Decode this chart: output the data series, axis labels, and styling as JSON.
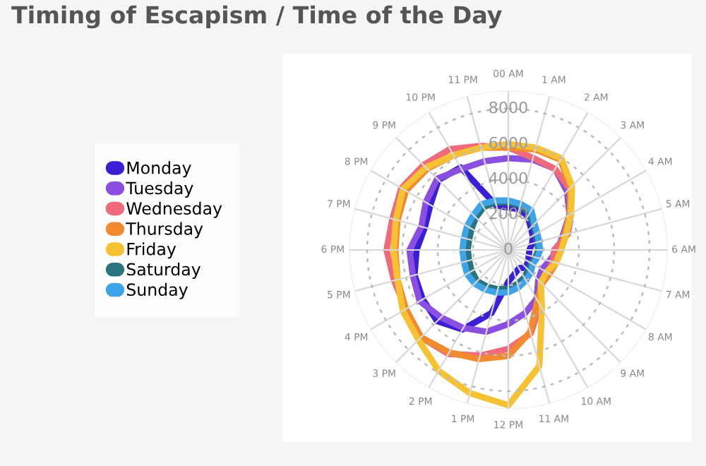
{
  "chart_data": {
    "type": "radar",
    "title": "Timing of Escapism / Time of the Day",
    "categories": [
      "00 AM",
      "1 AM",
      "2 AM",
      "3 AM",
      "4 AM",
      "5 AM",
      "6 AM",
      "7 AM",
      "8 AM",
      "9 AM",
      "10 AM",
      "11 AM",
      "12 PM",
      "1 PM",
      "2 PM",
      "3 PM",
      "4 PM",
      "5 PM",
      "6 PM",
      "7 PM",
      "8 PM",
      "9 PM",
      "10 PM",
      "11 PM"
    ],
    "series": [
      {
        "name": "Monday",
        "color": "#3b1fd6",
        "values": [
          2400,
          2400,
          2200,
          1800,
          1600,
          1400,
          1200,
          1200,
          1300,
          1400,
          1200,
          1400,
          1800,
          3700,
          5200,
          5700,
          5600,
          5500,
          5200,
          4900,
          5100,
          5600,
          5400,
          2600
        ]
      },
      {
        "name": "Tuesday",
        "color": "#8a4fe0",
        "values": [
          5200,
          5300,
          5300,
          4700,
          4000,
          3200,
          2800,
          2400,
          2200,
          2400,
          3200,
          3700,
          4200,
          4800,
          5100,
          5400,
          5800,
          5600,
          5600,
          5100,
          5400,
          5700,
          5300,
          5200
        ]
      },
      {
        "name": "Wednesday",
        "color": "#ef6b7b",
        "values": [
          5800,
          5400,
          5300,
          4900,
          4100,
          3500,
          2600,
          2600,
          2600,
          2600,
          3600,
          4900,
          5600,
          6200,
          6800,
          7000,
          6700,
          6700,
          6900,
          6800,
          7000,
          6800,
          6600,
          6100
        ]
      },
      {
        "name": "Thursday",
        "color": "#f28a30",
        "values": [
          5800,
          5900,
          5900,
          5000,
          4000,
          3300,
          3000,
          2800,
          2700,
          2700,
          3300,
          4800,
          6000,
          6400,
          6700,
          7000,
          6700,
          6500,
          6400,
          6500,
          6700,
          6500,
          6200,
          6000
        ]
      },
      {
        "name": "Friday",
        "color": "#f7c232",
        "values": [
          6000,
          6000,
          6000,
          5100,
          4100,
          3400,
          3000,
          2800,
          2500,
          2600,
          3800,
          6800,
          8800,
          8400,
          7900,
          7200,
          6900,
          6500,
          6500,
          6600,
          6900,
          6600,
          6200,
          6000
        ]
      },
      {
        "name": "Saturday",
        "color": "#2a7480",
        "values": [
          2700,
          2600,
          2400,
          2000,
          1800,
          1700,
          1700,
          1600,
          1500,
          1600,
          1800,
          2000,
          2200,
          2300,
          2400,
          2500,
          2400,
          2300,
          2300,
          2300,
          2400,
          2600,
          2800,
          2800
        ]
      },
      {
        "name": "Sunday",
        "color": "#3fa3e8",
        "values": [
          2800,
          2700,
          2600,
          2100,
          1900,
          1800,
          1800,
          1700,
          1600,
          1800,
          2000,
          2200,
          2400,
          2500,
          2600,
          2700,
          2700,
          2600,
          2600,
          2600,
          2700,
          2800,
          3000,
          2900
        ]
      }
    ],
    "ylim": [
      0,
      9000
    ],
    "yticks": [
      0,
      2000,
      4000,
      6000,
      8000
    ],
    "grid": true,
    "legend": "left",
    "marker": "none",
    "line_style": "solid"
  }
}
